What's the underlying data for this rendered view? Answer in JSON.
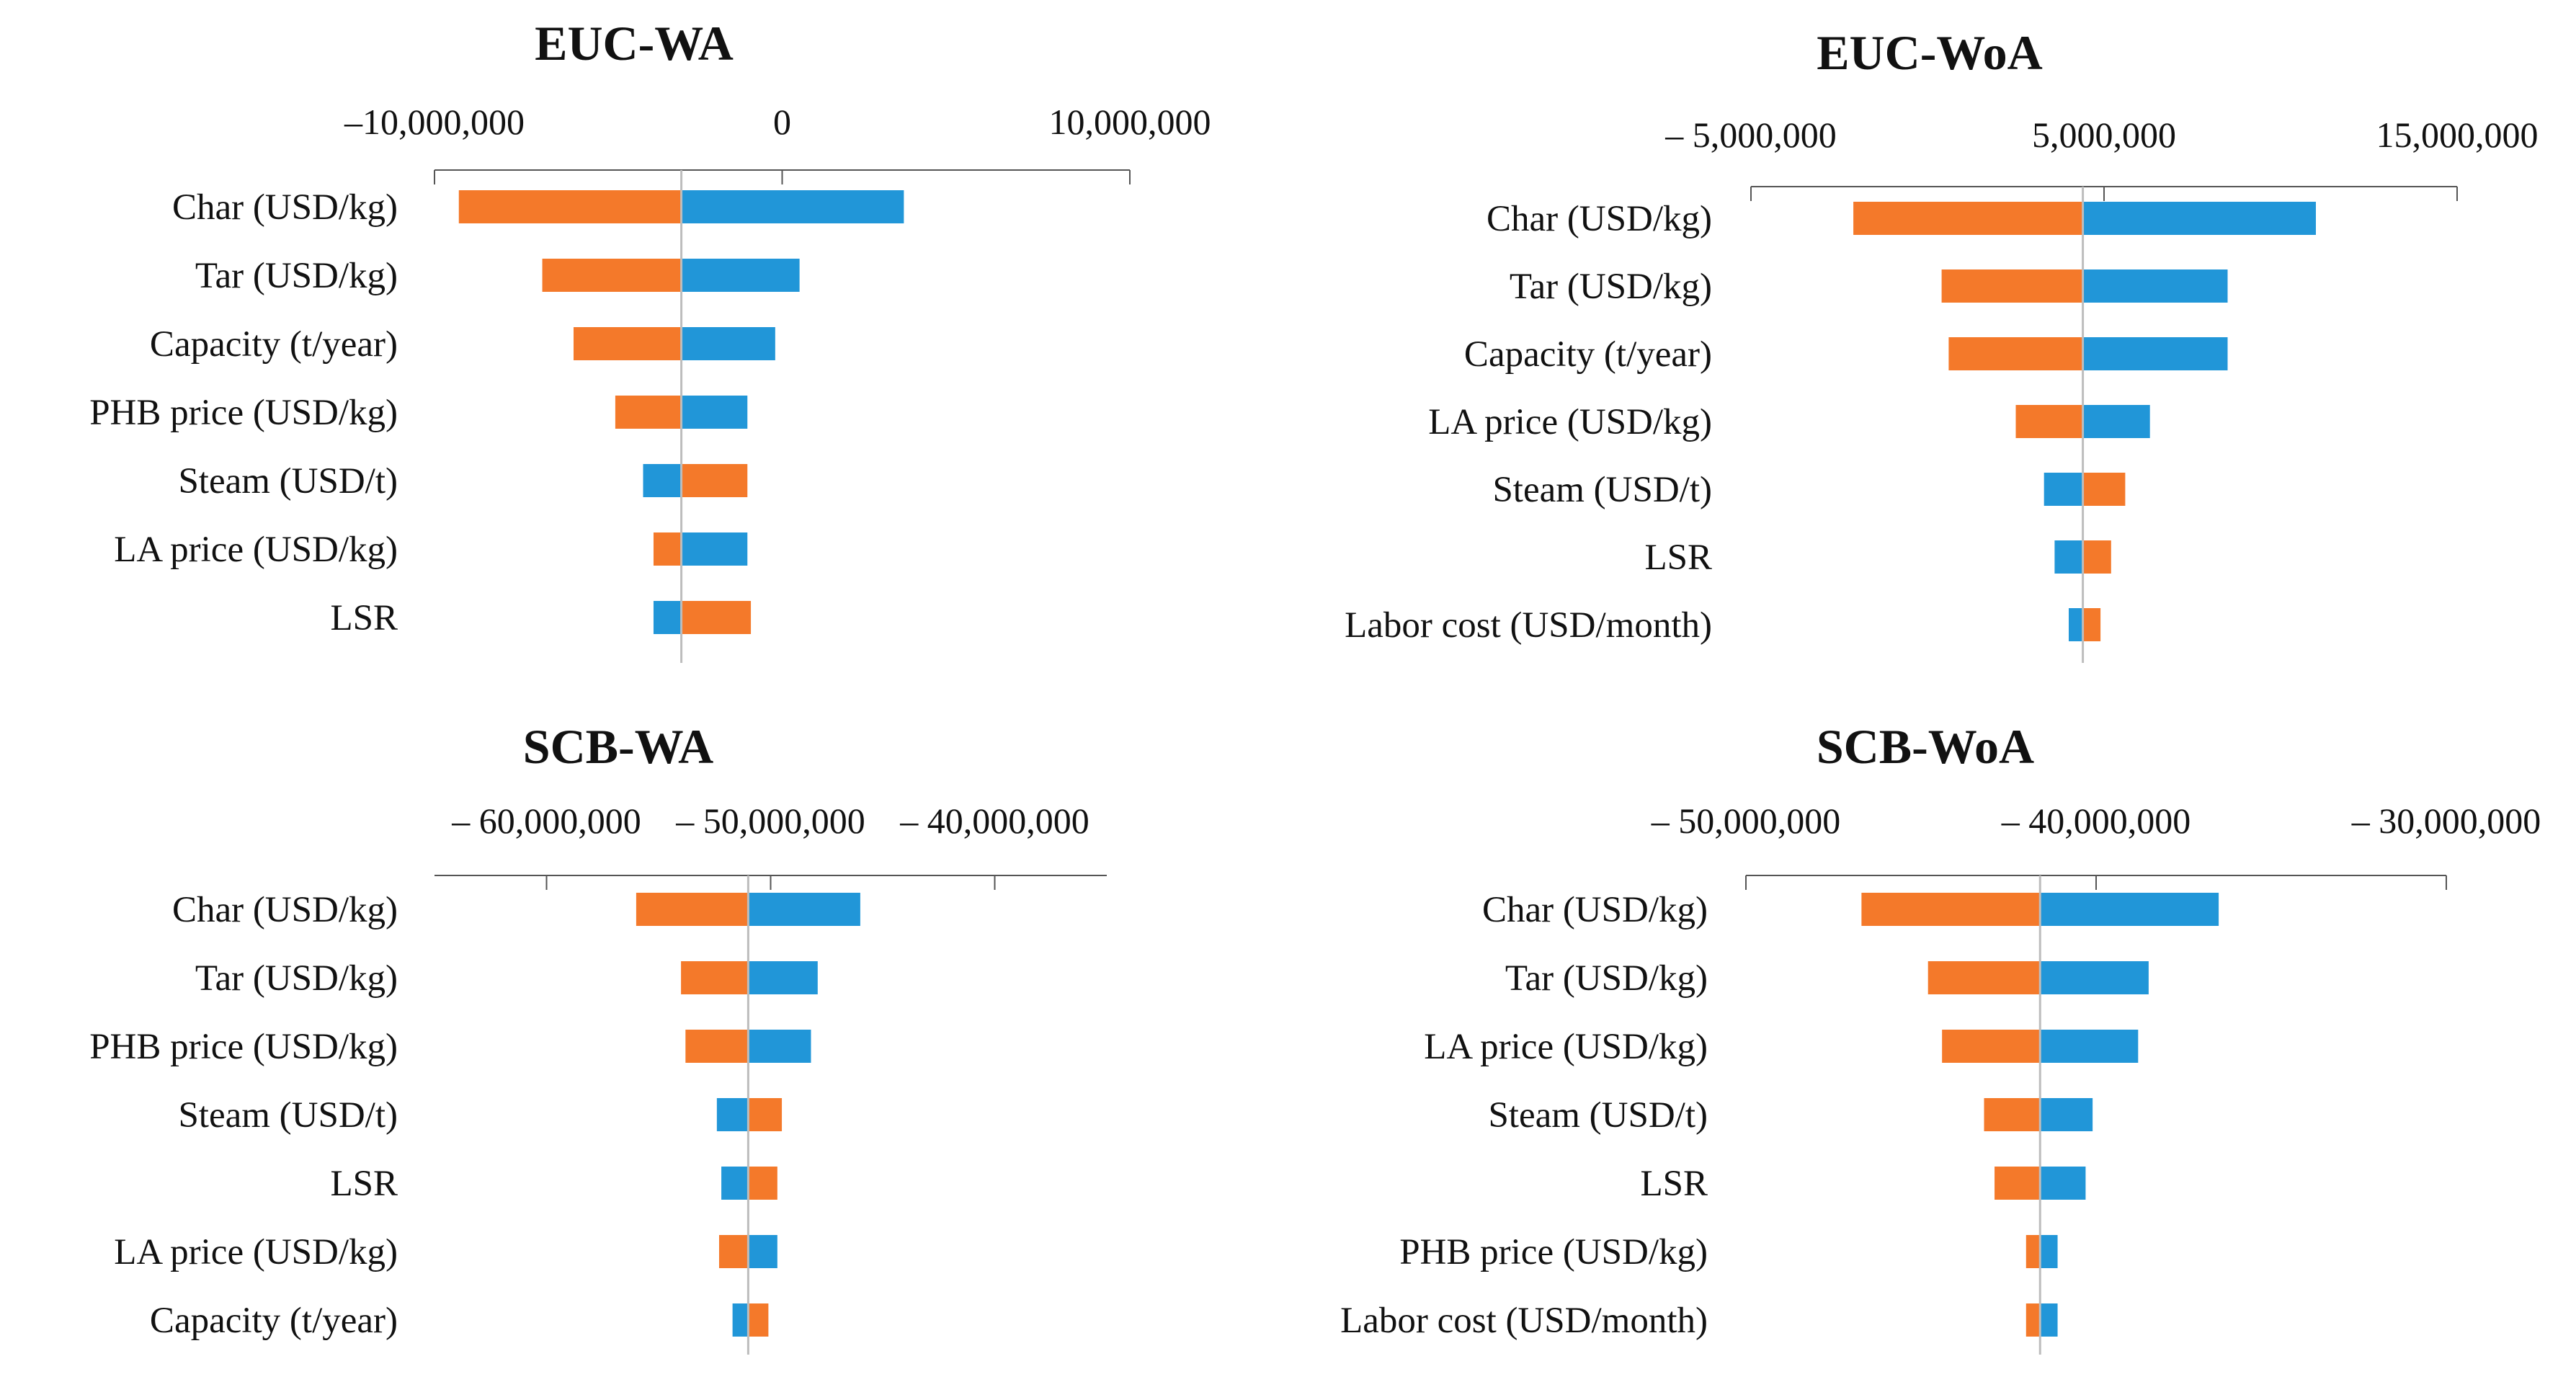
{
  "colors": {
    "low_bar": "#F4792A",
    "high_bar": "#2196D8",
    "axis": "#555555",
    "base_line": "#BDBDBD"
  },
  "chart_data": [
    {
      "type": "tornado",
      "title": "EUC-WA",
      "xlim": [
        -10000000,
        10000000
      ],
      "ticks": [
        -10000000,
        0,
        10000000
      ],
      "tick_labels": [
        "–10,000,000",
        "0",
        "10,000,000"
      ],
      "base_value": -2900000,
      "categories": [
        "Char (USD/kg)",
        "Tar (USD/kg)",
        "Capacity (t/year)",
        "PHB price (USD/kg)",
        "Steam (USD/t)",
        "LA price (USD/kg)",
        "LSR"
      ],
      "series": [
        {
          "name": "orange",
          "values": [
            -9300000,
            -6900000,
            -6000000,
            -4800000,
            -1000000,
            -3700000,
            -900000
          ]
        },
        {
          "name": "blue",
          "values": [
            3500000,
            500000,
            -200000,
            -1000000,
            -4000000,
            -1000000,
            -3700000
          ]
        }
      ]
    },
    {
      "type": "tornado",
      "title": "EUC-WoA",
      "xlim": [
        -5000000,
        15000000
      ],
      "ticks": [
        -5000000,
        5000000,
        15000000
      ],
      "tick_labels": [
        "– 5,000,000",
        "5,000,000",
        "15,000,000"
      ],
      "base_value": 4400000,
      "categories": [
        "Char (USD/kg)",
        "Tar (USD/kg)",
        "Capacity (t/year)",
        "LA price (USD/kg)",
        "Steam (USD/t)",
        "LSR",
        "Labor cost (USD/month)"
      ],
      "series": [
        {
          "name": "orange",
          "values": [
            -2100000,
            400000,
            600000,
            2500000,
            5600000,
            5200000,
            4900000
          ]
        },
        {
          "name": "blue",
          "values": [
            11000000,
            8500000,
            8500000,
            6300000,
            3300000,
            3600000,
            4000000
          ]
        }
      ]
    },
    {
      "type": "tornado",
      "title": "SCB-WA",
      "xlim": [
        -65000000,
        -35000000
      ],
      "ticks": [
        -60000000,
        -50000000,
        -40000000
      ],
      "tick_labels": [
        "– 60,000,000",
        "– 50,000,000",
        "– 40,000,000"
      ],
      "base_value": -51000000,
      "categories": [
        "Char (USD/kg)",
        "Tar (USD/kg)",
        "PHB price (USD/kg)",
        "Steam (USD/t)",
        "LSR",
        "LA price (USD/kg)",
        "Capacity (t/year)"
      ],
      "series": [
        {
          "name": "orange",
          "values": [
            -56000000,
            -54000000,
            -53800000,
            -49500000,
            -49700000,
            -52300000,
            -50100000
          ]
        },
        {
          "name": "blue",
          "values": [
            -46000000,
            -47900000,
            -48200000,
            -52400000,
            -52200000,
            -49700000,
            -51700000
          ]
        }
      ]
    },
    {
      "type": "tornado",
      "title": "SCB-WoA",
      "xlim": [
        -50000000,
        -30000000
      ],
      "ticks": [
        -50000000,
        -40000000,
        -30000000
      ],
      "tick_labels": [
        "– 50,000,000",
        "– 40,000,000",
        "– 30,000,000"
      ],
      "base_value": -41600000,
      "categories": [
        "Char (USD/kg)",
        "Tar (USD/kg)",
        "LA price (USD/kg)",
        "Steam (USD/t)",
        "LSR",
        "PHB price (USD/kg)",
        "Labor cost (USD/month)"
      ],
      "series": [
        {
          "name": "orange",
          "values": [
            -46700000,
            -44800000,
            -44400000,
            -43200000,
            -42900000,
            -42000000,
            -42000000
          ]
        },
        {
          "name": "blue",
          "values": [
            -36500000,
            -38500000,
            -38800000,
            -40100000,
            -40300000,
            -41100000,
            -41100000
          ]
        }
      ]
    }
  ]
}
